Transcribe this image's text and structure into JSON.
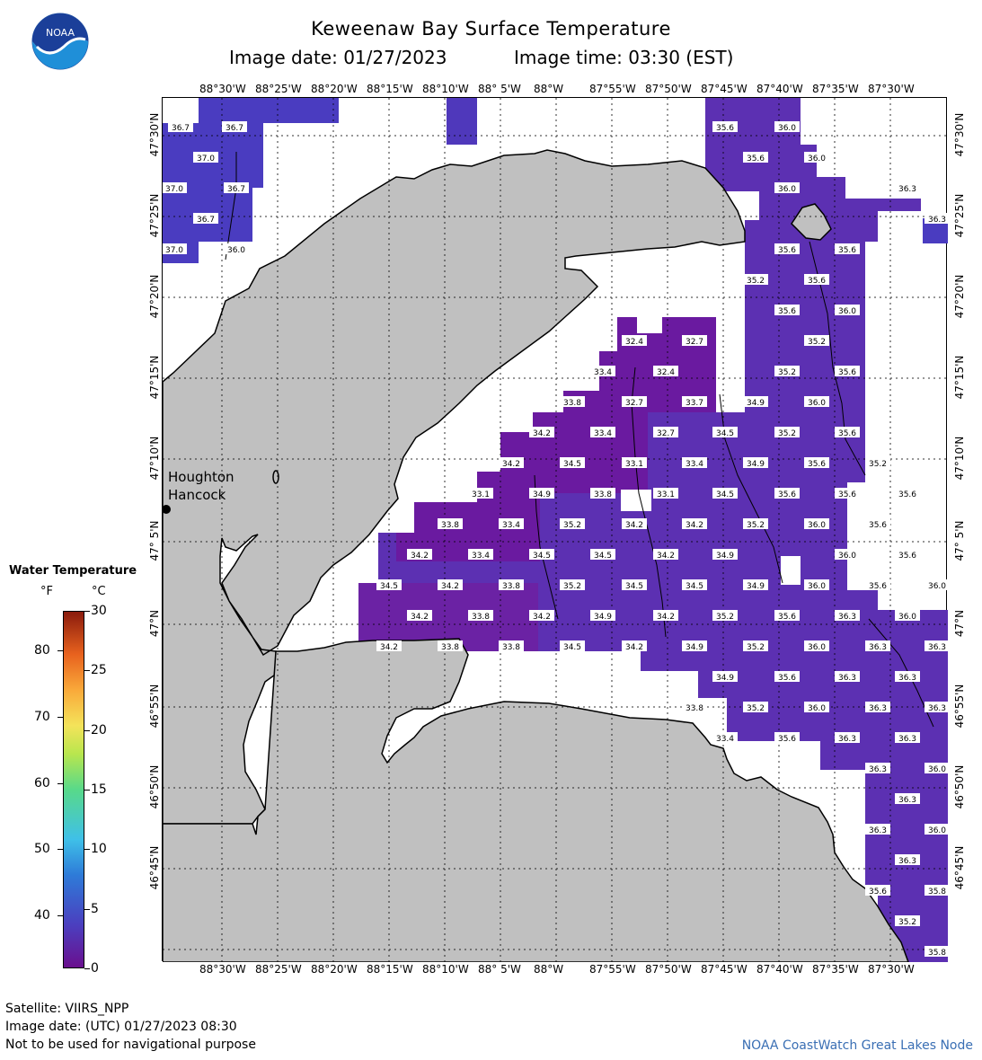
{
  "header": {
    "title": "Keweenaw Bay Surface Temperature",
    "date_label": "Image date: 01/27/2023",
    "time_label": "Image time: 03:30 (EST)"
  },
  "logo": {
    "text": "NOAA"
  },
  "axes": {
    "lon_labels": [
      "88°30'W",
      "88°25'W",
      "88°20'W",
      "88°15'W",
      "88°10'W",
      "88° 5'W",
      "88°W",
      "87°55'W",
      "87°50'W",
      "87°45'W",
      "87°40'W",
      "87°35'W",
      "87°30'W"
    ],
    "lat_labels": [
      "47°30'N",
      "47°25'N",
      "47°20'N",
      "47°15'N",
      "47°10'N",
      "47° 5'N",
      "47°N",
      "46°55'N",
      "46°50'N",
      "46°45'N"
    ]
  },
  "places": {
    "town1": "Houghton",
    "town2": "Hancock"
  },
  "legend": {
    "title": "Water Temperature",
    "unit_f": "°F",
    "unit_c": "°C",
    "f_ticks": [
      "80",
      "70",
      "60",
      "50",
      "40"
    ],
    "c_ticks": [
      "30",
      "25",
      "20",
      "15",
      "10",
      "5",
      "0"
    ]
  },
  "temperatures": [
    [
      "36.7",
      20,
      32
    ],
    [
      "36.7",
      80,
      32
    ],
    [
      "37.0",
      48,
      66
    ],
    [
      "37.0",
      13,
      100
    ],
    [
      "36.7",
      82,
      100
    ],
    [
      "36.7",
      48,
      134
    ],
    [
      "37.0",
      13,
      168
    ],
    [
      "36.0",
      82,
      168
    ],
    [
      "35.6",
      626,
      32
    ],
    [
      "36.0",
      695,
      32
    ],
    [
      "35.6",
      660,
      66
    ],
    [
      "36.0",
      728,
      66
    ],
    [
      "36.0",
      695,
      100
    ],
    [
      "36.3",
      829,
      100
    ],
    [
      "36.3",
      862,
      134
    ],
    [
      "35.6",
      695,
      168
    ],
    [
      "35.6",
      762,
      168
    ],
    [
      "35.2",
      660,
      202
    ],
    [
      "35.6",
      728,
      202
    ],
    [
      "35.6",
      695,
      236
    ],
    [
      "36.0",
      762,
      236
    ],
    [
      "35.2",
      728,
      270
    ],
    [
      "32.4",
      525,
      270
    ],
    [
      "32.7",
      592,
      270
    ],
    [
      "33.4",
      490,
      304
    ],
    [
      "32.4",
      560,
      304
    ],
    [
      "35.2",
      695,
      304
    ],
    [
      "35.6",
      762,
      304
    ],
    [
      "33.8",
      456,
      338
    ],
    [
      "32.7",
      525,
      338
    ],
    [
      "33.7",
      592,
      338
    ],
    [
      "34.9",
      660,
      338
    ],
    [
      "36.0",
      728,
      338
    ],
    [
      "34.2",
      422,
      372
    ],
    [
      "33.4",
      490,
      372
    ],
    [
      "32.7",
      560,
      372
    ],
    [
      "34.5",
      626,
      372
    ],
    [
      "35.2",
      695,
      372
    ],
    [
      "35.6",
      762,
      372
    ],
    [
      "34.2",
      388,
      406
    ],
    [
      "34.5",
      456,
      406
    ],
    [
      "33.1",
      525,
      406
    ],
    [
      "33.4",
      592,
      406
    ],
    [
      "34.9",
      660,
      406
    ],
    [
      "35.6",
      728,
      406
    ],
    [
      "35.2",
      796,
      406
    ],
    [
      "33.1",
      354,
      440
    ],
    [
      "34.9",
      422,
      440
    ],
    [
      "33.8",
      490,
      440
    ],
    [
      "33.1",
      560,
      440
    ],
    [
      "34.5",
      626,
      440
    ],
    [
      "35.6",
      695,
      440
    ],
    [
      "35.6",
      762,
      440
    ],
    [
      "35.6",
      829,
      440
    ],
    [
      "33.8",
      320,
      474
    ],
    [
      "33.4",
      388,
      474
    ],
    [
      "35.2",
      456,
      474
    ],
    [
      "34.2",
      525,
      474
    ],
    [
      "34.2",
      592,
      474
    ],
    [
      "35.2",
      660,
      474
    ],
    [
      "36.0",
      728,
      474
    ],
    [
      "35.6",
      796,
      474
    ],
    [
      "34.2",
      286,
      508
    ],
    [
      "33.4",
      354,
      508
    ],
    [
      "34.5",
      422,
      508
    ],
    [
      "34.5",
      490,
      508
    ],
    [
      "34.2",
      560,
      508
    ],
    [
      "34.9",
      626,
      508
    ],
    [
      "36.0",
      762,
      508
    ],
    [
      "35.6",
      829,
      508
    ],
    [
      "34.5",
      252,
      542
    ],
    [
      "34.2",
      320,
      542
    ],
    [
      "33.8",
      388,
      542
    ],
    [
      "35.2",
      456,
      542
    ],
    [
      "34.5",
      525,
      542
    ],
    [
      "34.5",
      592,
      542
    ],
    [
      "34.9",
      660,
      542
    ],
    [
      "36.0",
      728,
      542
    ],
    [
      "35.6",
      796,
      542
    ],
    [
      "36.0",
      862,
      542
    ],
    [
      "34.2",
      286,
      576
    ],
    [
      "33.8",
      354,
      576
    ],
    [
      "34.2",
      422,
      576
    ],
    [
      "34.9",
      490,
      576
    ],
    [
      "34.2",
      560,
      576
    ],
    [
      "35.2",
      626,
      576
    ],
    [
      "35.6",
      695,
      576
    ],
    [
      "36.3",
      762,
      576
    ],
    [
      "36.0",
      829,
      576
    ],
    [
      "34.2",
      252,
      610
    ],
    [
      "33.8",
      320,
      610
    ],
    [
      "33.8",
      388,
      610
    ],
    [
      "34.5",
      456,
      610
    ],
    [
      "34.2",
      525,
      610
    ],
    [
      "34.9",
      592,
      610
    ],
    [
      "35.2",
      660,
      610
    ],
    [
      "36.0",
      728,
      610
    ],
    [
      "36.3",
      796,
      610
    ],
    [
      "36.3",
      862,
      610
    ],
    [
      "34.9",
      626,
      644
    ],
    [
      "35.6",
      695,
      644
    ],
    [
      "36.3",
      762,
      644
    ],
    [
      "36.3",
      829,
      644
    ],
    [
      "33.8",
      592,
      678
    ],
    [
      "35.2",
      660,
      678
    ],
    [
      "36.0",
      728,
      678
    ],
    [
      "36.3",
      796,
      678
    ],
    [
      "36.3",
      862,
      678
    ],
    [
      "33.4",
      626,
      712
    ],
    [
      "35.6",
      695,
      712
    ],
    [
      "36.3",
      762,
      712
    ],
    [
      "36.3",
      829,
      712
    ],
    [
      "36.3",
      796,
      746
    ],
    [
      "36.0",
      862,
      746
    ],
    [
      "36.3",
      829,
      780
    ],
    [
      "36.3",
      796,
      814
    ],
    [
      "36.0",
      862,
      814
    ],
    [
      "36.3",
      829,
      848
    ],
    [
      "35.6",
      796,
      882
    ],
    [
      "35.8",
      862,
      882
    ],
    [
      "35.2",
      829,
      916
    ],
    [
      "35.8",
      862,
      950
    ]
  ],
  "footer": {
    "satellite": "Satellite: VIIRS_NPP",
    "utc_date": "Image date: (UTC) 01/27/2023  08:30",
    "disclaimer": "Not to be used for navigational purpose",
    "credit": "NOAA CoastWatch Great Lakes Node"
  },
  "colors": {
    "land": "#c0c0c0",
    "water_cold": "#5a2fb0",
    "water_warm": "#6b1fa0",
    "credit": "#3a6fb4"
  }
}
